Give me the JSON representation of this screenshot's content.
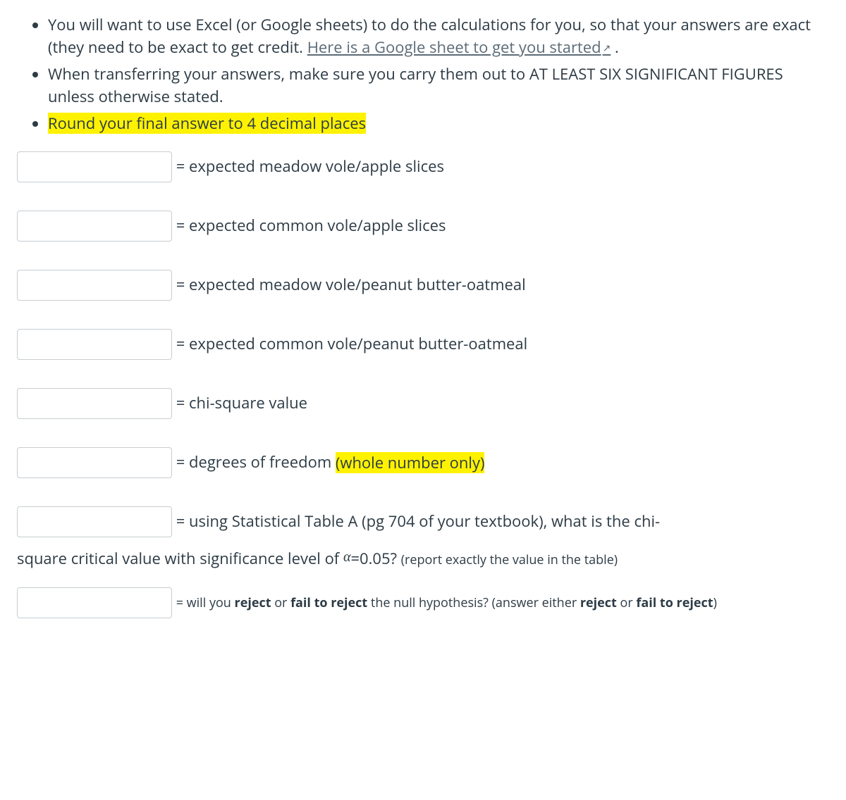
{
  "instructions": {
    "items": [
      {
        "pre": "You will want to use Excel (or Google sheets) to do the calculations for you, so that your answers are exact (they need to be exact to get credit. ",
        "link_text": "Here is a Google sheet to get you started",
        "post": " ."
      },
      {
        "text": "When transferring your answers, make sure you carry them out to AT LEAST SIX SIGNIFICANT FIGURES unless otherwise stated."
      },
      {
        "highlight": "Round your final answer to 4 decimal places"
      }
    ]
  },
  "answers": {
    "r1": {
      "label": "= expected meadow vole/apple slices"
    },
    "r2": {
      "label": "= expected common vole/apple slices"
    },
    "r3": {
      "label": "= expected meadow vole/peanut butter-oatmeal"
    },
    "r4": {
      "label": "= expected common vole/peanut butter-oatmeal"
    },
    "r5": {
      "label": "= chi-square value"
    },
    "r6": {
      "label_pre": "= degrees of freedom ",
      "highlight": "(whole number only)"
    },
    "r7": {
      "label_pre": "= using Statistical Table A (pg 704 of your textbook), what is the chi-",
      "cont_pre": "square critical value with significance level of ",
      "alpha": "α",
      "cont_mid": "=0.05? ",
      "cont_small": "(report exactly the value in the table)"
    },
    "r8": {
      "pre": "= will you ",
      "b1": "reject",
      "mid1": " or ",
      "b2": "fail to reject",
      "mid2": " the null hypothesis? (answer either ",
      "b3": "reject",
      "mid3": " or ",
      "b4": "fail to reject",
      "post": ")"
    }
  },
  "colors": {
    "highlight": "#fff200",
    "text": "#2d3b45",
    "link": "#5b6b77",
    "border": "#c7cdd1",
    "background": "#ffffff"
  }
}
